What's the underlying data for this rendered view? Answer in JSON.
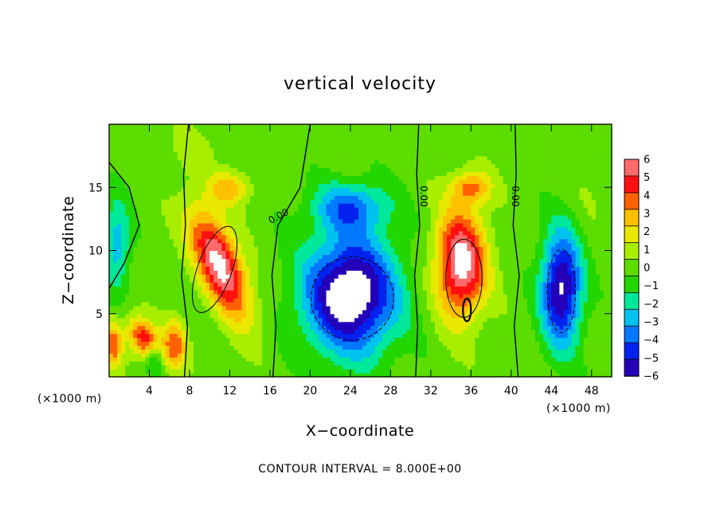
{
  "chart_data": {
    "type": "heatmap",
    "title": "vertical velocity",
    "xlabel": "X−coordinate",
    "ylabel": "Z−coordinate",
    "x_unit_left": "(×1000 m)",
    "x_unit_right": "(×1000 m)",
    "xlim": [
      0,
      50
    ],
    "ylim": [
      0,
      20
    ],
    "x_ticks": [
      "4",
      "8",
      "12",
      "16",
      "20",
      "24",
      "28",
      "32",
      "36",
      "40",
      "44",
      "48"
    ],
    "x_tick_values": [
      4,
      8,
      12,
      16,
      20,
      24,
      28,
      32,
      36,
      40,
      44,
      48
    ],
    "y_ticks": [
      "5",
      "10",
      "15"
    ],
    "y_tick_values": [
      5,
      10,
      15
    ],
    "colorbar": {
      "labels": [
        "6",
        "5",
        "4",
        "3",
        "2",
        "1",
        "0",
        "−1",
        "−2",
        "−3",
        "−4",
        "−5",
        "−6"
      ],
      "values": [
        6,
        5,
        4,
        3,
        2,
        1,
        0,
        -1,
        -2,
        -3,
        -4,
        -5,
        -6
      ],
      "range": [
        -6,
        6
      ]
    },
    "contour_labels": [
      {
        "text": "0.00",
        "x": 17,
        "y": 12.5
      },
      {
        "text": "0.00",
        "x": 31,
        "y": 14.3
      },
      {
        "text": "0.00",
        "x": 40.1,
        "y": 14.3
      }
    ],
    "footnote": "CONTOUR INTERVAL = 8.000E+00",
    "features": [
      {
        "x": 11,
        "z": 9,
        "w": 4.2,
        "sx": 2.2,
        "sz": 4.2,
        "tilt": 0.45
      },
      {
        "x": 35,
        "z": 9,
        "w": 4.2,
        "sx": 2.5,
        "sz": 4.2
      },
      {
        "x": 3.5,
        "z": 3.0,
        "w": 3.2,
        "sx": 1.5,
        "sz": 1.7,
        "tilt": 0.4
      },
      {
        "x": 0.4,
        "z": 2.6,
        "w": 2.4,
        "sx": 0.9,
        "sz": 1.8
      },
      {
        "x": 6.5,
        "z": 2.5,
        "w": 2.3,
        "sx": 1.2,
        "sz": 2.0
      },
      {
        "x": 36,
        "z": 15,
        "w": 2.0,
        "sx": 2.0,
        "sz": 1.3
      },
      {
        "x": 12,
        "z": 15,
        "w": 1.8,
        "sx": 2.0,
        "sz": 1.3
      },
      {
        "x": 24,
        "z": 6.5,
        "w": -4.6,
        "sx": 4.6,
        "sz": 4.6
      },
      {
        "x": 24,
        "z": 13.5,
        "w": -2.2,
        "sx": 3.8,
        "sz": 2.0
      },
      {
        "x": 45,
        "z": 7.0,
        "w": -4.0,
        "sx": 2.0,
        "sz": 4.5
      },
      {
        "x": 0.8,
        "z": 10.5,
        "w": -1.9,
        "sx": 1.3,
        "sz": 3.5
      },
      {
        "x": 4.5,
        "z": 1.5,
        "w": -1.6,
        "sx": 1.0,
        "sz": 1.3
      },
      {
        "x": 8,
        "z": 18,
        "w": 0.4,
        "sx": 3.0,
        "sz": 2.0
      },
      {
        "x": 48,
        "z": 15,
        "w": 0.3,
        "sx": 2.0,
        "sz": 3.0
      }
    ]
  }
}
